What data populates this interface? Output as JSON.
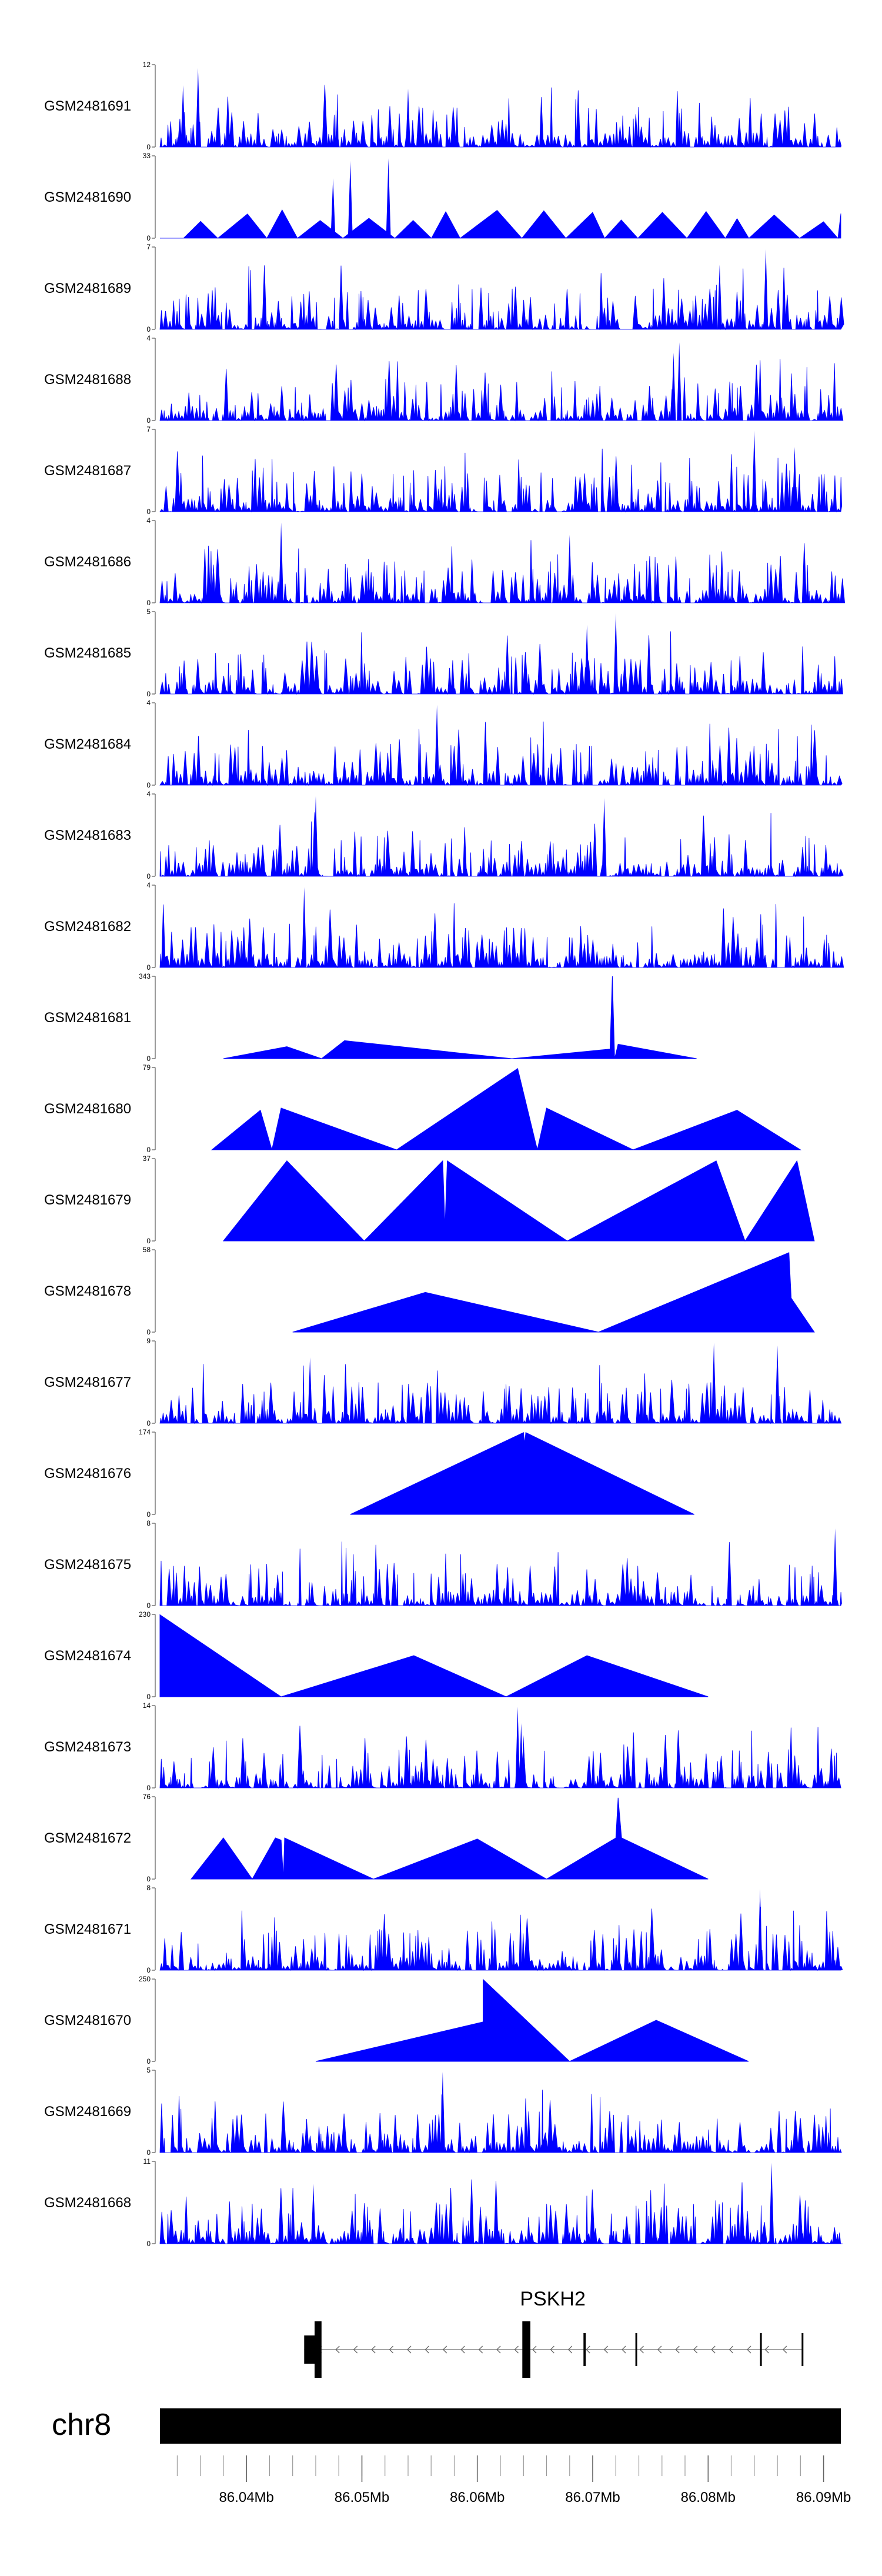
{
  "chart_data": {
    "type": "area",
    "fill_color": "#0000ff",
    "x_unit": "Mb",
    "x_range": [
      86.0325,
      86.0915
    ],
    "tracks": [
      {
        "name": "GSM2481691",
        "ymax": "12",
        "shape": "dense",
        "seed": 11,
        "points": [
          [
            86.0345,
            9
          ],
          [
            86.0358,
            11.5
          ],
          [
            86.054,
            8.5
          ]
        ]
      },
      {
        "name": "GSM2481690",
        "ymax": "33",
        "shape": "sparse",
        "seed": 12,
        "points": [
          [
            86.0475,
            24
          ],
          [
            86.049,
            31
          ],
          [
            86.0523,
            32
          ]
        ]
      },
      {
        "name": "GSM2481689",
        "ymax": "7",
        "shape": "dense",
        "seed": 13,
        "points": [
          [
            86.085,
            6.8
          ],
          [
            86.081,
            5.5
          ]
        ]
      },
      {
        "name": "GSM2481688",
        "ymax": "4",
        "shape": "dense",
        "seed": 14,
        "points": [
          [
            86.0775,
            3.8
          ],
          [
            86.077,
            3.3
          ]
        ]
      },
      {
        "name": "GSM2481687",
        "ymax": "7",
        "shape": "dense",
        "seed": 15,
        "points": [
          [
            86.084,
            6.9
          ],
          [
            86.0875,
            5.5
          ]
        ]
      },
      {
        "name": "GSM2481686",
        "ymax": "4",
        "shape": "dense",
        "seed": 16,
        "points": [
          [
            86.043,
            3.9
          ],
          [
            86.068,
            3.3
          ]
        ]
      },
      {
        "name": "GSM2481685",
        "ymax": "5",
        "shape": "dense",
        "seed": 17,
        "points": [
          [
            86.072,
            4.9
          ],
          [
            86.0695,
            4.2
          ]
        ]
      },
      {
        "name": "GSM2481684",
        "ymax": "4",
        "shape": "dense",
        "seed": 18,
        "points": [
          [
            86.0565,
            3.9
          ]
        ]
      },
      {
        "name": "GSM2481683",
        "ymax": "4",
        "shape": "dense",
        "seed": 19,
        "points": [
          [
            86.046,
            3.9
          ],
          [
            86.071,
            3.8
          ]
        ]
      },
      {
        "name": "GSM2481682",
        "ymax": "4",
        "shape": "dense",
        "seed": 20,
        "points": [
          [
            86.045,
            3.9
          ]
        ]
      },
      {
        "name": "GSM2481681",
        "ymax": "343",
        "shape": "triangles",
        "points": [
          [
            86.038,
            0
          ],
          [
            86.0435,
            50
          ],
          [
            86.0465,
            0
          ],
          [
            86.0485,
            75
          ],
          [
            86.063,
            0
          ],
          [
            86.0715,
            40
          ],
          [
            86.0717,
            343
          ],
          [
            86.0719,
            0
          ],
          [
            86.0722,
            60
          ],
          [
            86.079,
            0
          ]
        ]
      },
      {
        "name": "GSM2481680",
        "ymax": "79",
        "shape": "triangles",
        "points": [
          [
            86.037,
            0
          ],
          [
            86.0412,
            38
          ],
          [
            86.0422,
            0
          ],
          [
            86.043,
            40
          ],
          [
            86.053,
            0
          ],
          [
            86.0635,
            78
          ],
          [
            86.0652,
            0
          ],
          [
            86.066,
            40
          ],
          [
            86.0735,
            0
          ],
          [
            86.0825,
            38
          ],
          [
            86.088,
            0
          ]
        ]
      },
      {
        "name": "GSM2481679",
        "ymax": "37",
        "shape": "triangles",
        "points": [
          [
            86.038,
            0
          ],
          [
            86.0435,
            36
          ],
          [
            86.0502,
            0
          ],
          [
            86.057,
            36
          ],
          [
            86.0572,
            6
          ],
          [
            86.0574,
            36
          ],
          [
            86.0678,
            0
          ],
          [
            86.0807,
            36
          ],
          [
            86.0832,
            0
          ],
          [
            86.0877,
            36
          ],
          [
            86.0892,
            0
          ]
        ]
      },
      {
        "name": "GSM2481678",
        "ymax": "58",
        "shape": "triangles",
        "points": [
          [
            86.044,
            0
          ],
          [
            86.0555,
            28
          ],
          [
            86.0705,
            0
          ],
          [
            86.087,
            56
          ],
          [
            86.0872,
            24
          ],
          [
            86.0892,
            0
          ]
        ]
      },
      {
        "name": "GSM2481677",
        "ymax": "9",
        "shape": "dense",
        "seed": 21,
        "points": [
          [
            86.0455,
            7.2
          ],
          [
            86.0805,
            8.8
          ],
          [
            86.086,
            8.5
          ]
        ]
      },
      {
        "name": "GSM2481676",
        "ymax": "174",
        "shape": "triangles",
        "points": [
          [
            86.049,
            0
          ],
          [
            86.064,
            173
          ],
          [
            86.0641,
            150
          ],
          [
            86.0642,
            173
          ],
          [
            86.0788,
            0
          ]
        ]
      },
      {
        "name": "GSM2481675",
        "ymax": "8",
        "shape": "dense",
        "seed": 22,
        "points": [
          [
            86.091,
            7.5
          ]
        ]
      },
      {
        "name": "GSM2481674",
        "ymax": "230",
        "shape": "triangles",
        "points": [
          [
            86.0325,
            229
          ],
          [
            86.043,
            0
          ],
          [
            86.0545,
            115
          ],
          [
            86.0625,
            0
          ],
          [
            86.0695,
            115
          ],
          [
            86.08,
            0
          ]
        ]
      },
      {
        "name": "GSM2481673",
        "ymax": "14",
        "shape": "dense",
        "seed": 23,
        "points": [
          [
            86.0635,
            13.8
          ],
          [
            86.0638,
            11
          ],
          [
            86.064,
            9
          ]
        ]
      },
      {
        "name": "GSM2481672",
        "ymax": "76",
        "shape": "triangles",
        "points": [
          [
            86.0352,
            0
          ],
          [
            86.038,
            38
          ],
          [
            86.0405,
            0
          ],
          [
            86.0425,
            38
          ],
          [
            86.043,
            36
          ],
          [
            86.0432,
            0
          ],
          [
            86.0433,
            38
          ],
          [
            86.051,
            0
          ],
          [
            86.06,
            37
          ],
          [
            86.066,
            0
          ],
          [
            86.072,
            38
          ],
          [
            86.0722,
            75
          ],
          [
            86.0725,
            38
          ],
          [
            86.08,
            0
          ]
        ]
      },
      {
        "name": "GSM2481671",
        "ymax": "8",
        "shape": "dense",
        "seed": 24,
        "points": [
          [
            86.0845,
            7.9
          ]
        ]
      },
      {
        "name": "GSM2481670",
        "ymax": "250",
        "shape": "triangles",
        "points": [
          [
            86.046,
            0
          ],
          [
            86.0605,
            120
          ],
          [
            86.0605,
            249
          ],
          [
            86.068,
            0
          ],
          [
            86.0755,
            125
          ],
          [
            86.0835,
            0
          ]
        ]
      },
      {
        "name": "GSM2481669",
        "ymax": "5",
        "shape": "dense",
        "seed": 25,
        "points": [
          [
            86.057,
            4.9
          ]
        ]
      },
      {
        "name": "GSM2481668",
        "ymax": "11",
        "shape": "dense",
        "seed": 26,
        "points": [
          [
            86.0855,
            10.8
          ],
          [
            86.0458,
            8
          ]
        ]
      }
    ],
    "gene": {
      "name": "PSKH2",
      "strand": "-",
      "start": 86.045,
      "end": 86.0882,
      "exons": [
        [
          86.045,
          86.0465
        ],
        [
          86.0639,
          86.0646
        ],
        [
          86.0692,
          86.0694
        ],
        [
          86.0737,
          86.0738
        ],
        [
          86.0845,
          86.0846
        ],
        [
          86.0881,
          86.0882
        ]
      ]
    },
    "chromosome": {
      "name": "chr8",
      "tick_labels": [
        "86.04Mb",
        "86.05Mb",
        "86.06Mb",
        "86.07Mb",
        "86.08Mb",
        "86.09Mb"
      ],
      "tick_values": [
        86.04,
        86.05,
        86.06,
        86.07,
        86.08,
        86.09
      ],
      "minor_tick_step": 0.002
    }
  }
}
